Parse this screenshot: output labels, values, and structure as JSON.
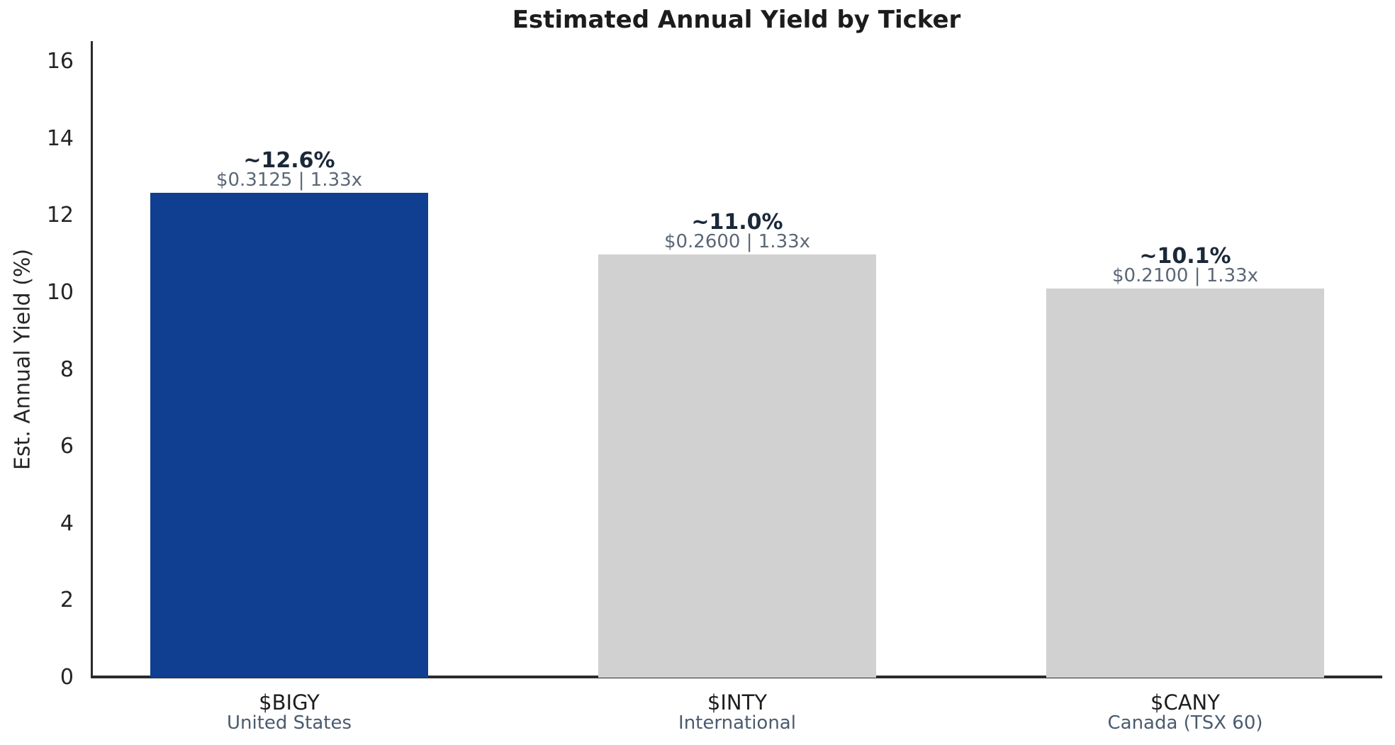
{
  "chart_data": {
    "type": "bar",
    "title": "Estimated Annual Yield by Ticker",
    "ylabel": "Est. Annual Yield (%)",
    "ylim": [
      0,
      16
    ],
    "yticks": [
      0,
      2,
      4,
      6,
      8,
      10,
      12,
      14,
      16
    ],
    "grid": false,
    "legend": false,
    "categories": [
      "$BIGY",
      "$INTY",
      "$CANY"
    ],
    "regions": [
      "United States",
      "International",
      "Canada (TSX 60)"
    ],
    "values": [
      12.6,
      11.0,
      10.1
    ],
    "bar_labels": [
      "~12.6%",
      "~11.0%",
      "~10.1%"
    ],
    "bar_sublabels": [
      "$0.3125 | 1.33x",
      "$0.2600 | 1.33x",
      "$0.2100 | 1.33x"
    ],
    "highlighted_index": 0,
    "colors": {
      "highlight_bar": "#103f91",
      "default_bar": "#d1d1d1",
      "annotation_dark": "#1b2838",
      "annotation_gray": "#5b6776",
      "region_gray": "#4a5b6f",
      "axis": "#2b2b2b"
    }
  }
}
